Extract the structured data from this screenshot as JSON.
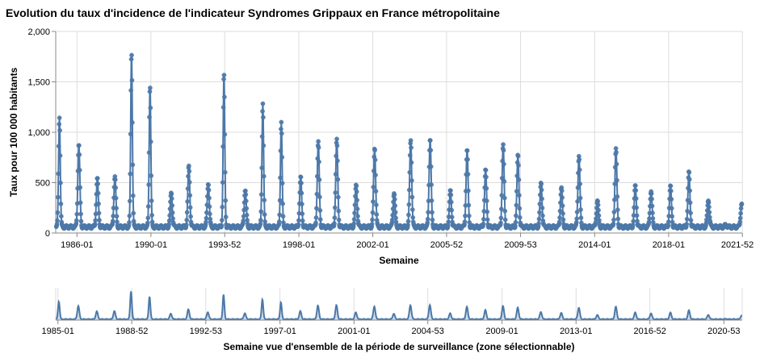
{
  "chart_data": [
    {
      "type": "line",
      "title": "Evolution du taux d'incidence de l'indicateur Syndromes Grippaux en France métropolitaine",
      "xlabel": "Semaine",
      "ylabel": "Taux pour 100 000 habitants",
      "xlim": [
        1984.85,
        2021.98
      ],
      "ylim": [
        0,
        2000
      ],
      "x_ticks": [
        {
          "label": "1986-01",
          "x": 1986.0
        },
        {
          "label": "1990-01",
          "x": 1990.0
        },
        {
          "label": "1993-52",
          "x": 1993.99
        },
        {
          "label": "1998-01",
          "x": 1998.0
        },
        {
          "label": "2002-01",
          "x": 2002.0
        },
        {
          "label": "2005-52",
          "x": 2005.99
        },
        {
          "label": "2009-53",
          "x": 2009.99
        },
        {
          "label": "2014-01",
          "x": 2014.0
        },
        {
          "label": "2018-01",
          "x": 2018.0
        },
        {
          "label": "2021-52",
          "x": 2021.99
        }
      ],
      "y_ticks": [
        {
          "label": "0",
          "y": 0
        },
        {
          "label": "500",
          "y": 500
        },
        {
          "label": "1,000",
          "y": 1000
        },
        {
          "label": "1,500",
          "y": 1500
        },
        {
          "label": "2,000",
          "y": 2000
        }
      ],
      "grid": true,
      "series": [
        {
          "color": "#4c78a8",
          "baseline": 60,
          "epidemic_peaks": [
            {
              "x": 1985.05,
              "y": 1160
            },
            {
              "x": 1986.1,
              "y": 880
            },
            {
              "x": 1987.1,
              "y": 540
            },
            {
              "x": 1988.05,
              "y": 560
            },
            {
              "x": 1988.95,
              "y": 1800
            },
            {
              "x": 1989.95,
              "y": 1470
            },
            {
              "x": 1991.1,
              "y": 400
            },
            {
              "x": 1992.05,
              "y": 660
            },
            {
              "x": 1993.1,
              "y": 500
            },
            {
              "x": 1993.95,
              "y": 1570
            },
            {
              "x": 1995.1,
              "y": 430
            },
            {
              "x": 1996.05,
              "y": 1300
            },
            {
              "x": 1997.05,
              "y": 1110
            },
            {
              "x": 1998.1,
              "y": 550
            },
            {
              "x": 1999.05,
              "y": 900
            },
            {
              "x": 2000.05,
              "y": 920
            },
            {
              "x": 2001.1,
              "y": 480
            },
            {
              "x": 2002.1,
              "y": 850
            },
            {
              "x": 2003.15,
              "y": 400
            },
            {
              "x": 2004.05,
              "y": 930
            },
            {
              "x": 2005.1,
              "y": 940
            },
            {
              "x": 2006.2,
              "y": 420
            },
            {
              "x": 2007.1,
              "y": 820
            },
            {
              "x": 2008.1,
              "y": 620
            },
            {
              "x": 2009.05,
              "y": 870
            },
            {
              "x": 2009.85,
              "y": 770
            },
            {
              "x": 2011.1,
              "y": 500
            },
            {
              "x": 2012.2,
              "y": 450
            },
            {
              "x": 2013.15,
              "y": 770
            },
            {
              "x": 2014.15,
              "y": 320
            },
            {
              "x": 2015.15,
              "y": 830
            },
            {
              "x": 2016.2,
              "y": 470
            },
            {
              "x": 2017.05,
              "y": 420
            },
            {
              "x": 2018.1,
              "y": 460
            },
            {
              "x": 2019.1,
              "y": 600
            },
            {
              "x": 2020.15,
              "y": 330
            },
            {
              "x": 2021.1,
              "y": 80
            },
            {
              "x": 2021.95,
              "y": 290
            }
          ]
        }
      ]
    },
    {
      "type": "area",
      "xlabel": "Semaine vue d'ensemble de la période de surveillance (zone sélectionnable)",
      "xlim": [
        1984.88,
        2021.98
      ],
      "x_ticks": [
        {
          "label": "1985-01",
          "x": 1985.0
        },
        {
          "label": "1988-52",
          "x": 1988.99
        },
        {
          "label": "1992-53",
          "x": 1992.99
        },
        {
          "label": "1997-01",
          "x": 1997.0
        },
        {
          "label": "2001-01",
          "x": 2001.0
        },
        {
          "label": "2004-53",
          "x": 2004.99
        },
        {
          "label": "2009-01",
          "x": 2009.0
        },
        {
          "label": "2013-01",
          "x": 2013.0
        },
        {
          "label": "2016-52",
          "x": 2016.99
        },
        {
          "label": "2020-53",
          "x": 2020.99
        }
      ]
    }
  ]
}
